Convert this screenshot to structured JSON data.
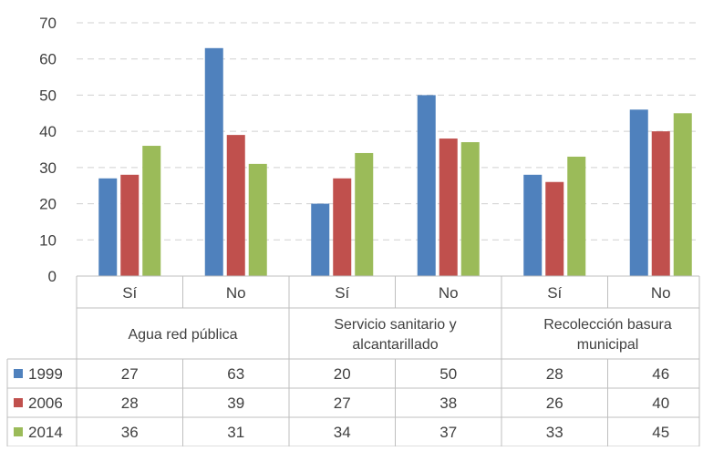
{
  "chart_data": {
    "type": "bar",
    "title": "",
    "xlabel": "",
    "ylabel": "",
    "ylim": [
      0,
      70
    ],
    "yticks": [
      0,
      10,
      20,
      30,
      40,
      50,
      60,
      70
    ],
    "grid": true,
    "legend_placement": "data-table-left",
    "groups": [
      {
        "lines": [
          "Agua red pública"
        ],
        "categories": [
          "Sí",
          "No"
        ]
      },
      {
        "lines": [
          "Servicio sanitario y",
          "alcantarillado"
        ],
        "categories": [
          "Sí",
          "No"
        ]
      },
      {
        "lines": [
          "Recolección basura",
          "municipal"
        ],
        "categories": [
          "Sí",
          "No"
        ]
      }
    ],
    "categories": [
      "Sí",
      "No",
      "Sí",
      "No",
      "Sí",
      "No"
    ],
    "series": [
      {
        "name": "1999",
        "color": "#4f81bd",
        "values": [
          27,
          63,
          20,
          50,
          28,
          46
        ]
      },
      {
        "name": "2006",
        "color": "#c0504d",
        "values": [
          28,
          39,
          27,
          38,
          26,
          40
        ]
      },
      {
        "name": "2014",
        "color": "#9bbb59",
        "values": [
          36,
          31,
          34,
          37,
          33,
          45
        ]
      }
    ],
    "display_values": [
      [
        27,
        63,
        20,
        50,
        28,
        46
      ],
      [
        28,
        39,
        27,
        38,
        26,
        40
      ],
      [
        36,
        31,
        34,
        37,
        33,
        45
      ]
    ]
  }
}
